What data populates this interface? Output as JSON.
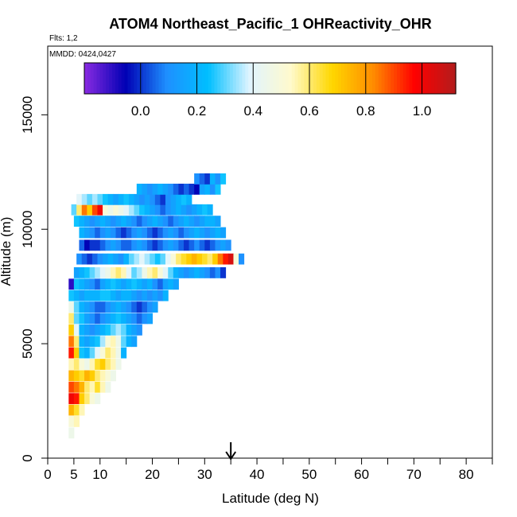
{
  "chart_data": {
    "type": "heatmap",
    "title": "ATOM4 Northeast_Pacific_1 OHReactivity_OHR",
    "flights_note": "Flts: 1,2",
    "date_note": "MMDD: 0424,0427",
    "xlabel": "Latitude (deg N)",
    "ylabel": "Altitude (m)",
    "xlim": [
      0,
      85
    ],
    "ylim": [
      0,
      18000
    ],
    "x_ticks": [
      0,
      5,
      10,
      20,
      30,
      40,
      50,
      60,
      70,
      80
    ],
    "x_minor_ticks": [
      15,
      25,
      35,
      45,
      55,
      65,
      75,
      85
    ],
    "y_ticks": [
      0,
      5000,
      10000,
      15000
    ],
    "colorbar": {
      "range": [
        -0.2,
        1.12
      ],
      "ticks": [
        0.0,
        0.2,
        0.4,
        0.6,
        0.8,
        1.0
      ],
      "tick_labels": [
        "0.0",
        "0.2",
        "0.4",
        "0.6",
        "0.8",
        "1.0"
      ],
      "colors": [
        "#8a2be2",
        "#0000b4",
        "#1e90ff",
        "#00bfff",
        "#e0f4ff",
        "#fffacd",
        "#ffd700",
        "#ff8c00",
        "#ff0000",
        "#b21c1c"
      ]
    },
    "marker_latitude": 35,
    "rows": [
      {
        "alt": 1100,
        "lat_start": 4.0,
        "values": [
          0.45
        ]
      },
      {
        "alt": 1600,
        "lat_start": 4.0,
        "values": [
          0.5,
          0.55
        ]
      },
      {
        "alt": 2100,
        "lat_start": 4.0,
        "values": [
          0.75,
          0.65,
          0.55
        ]
      },
      {
        "alt": 2600,
        "lat_start": 4.0,
        "values": [
          1.0,
          0.95,
          0.7,
          0.6,
          0.5,
          0.45
        ]
      },
      {
        "alt": 3100,
        "lat_start": 4.0,
        "values": [
          0.9,
          0.85,
          0.75,
          0.6,
          0.55,
          0.65,
          0.55,
          0.45
        ]
      },
      {
        "alt": 3600,
        "lat_start": 4.0,
        "values": [
          0.75,
          0.7,
          0.65,
          0.75,
          0.7,
          0.6,
          0.55,
          0.5,
          0.45
        ]
      },
      {
        "alt": 4100,
        "lat_start": 4.0,
        "values": [
          0.55,
          0.6,
          0.5,
          0.45,
          0.55,
          0.65,
          0.7,
          0.6,
          0.55,
          0.45
        ]
      },
      {
        "alt": 4600,
        "lat_start": 4.0,
        "values": [
          0.95,
          0.7,
          0.25,
          0.2,
          0.3,
          0.4,
          0.5,
          0.6,
          0.55,
          0.45,
          0.2
        ]
      },
      {
        "alt": 5100,
        "lat_start": 4.0,
        "values": [
          0.85,
          0.6,
          0.2,
          0.15,
          0.2,
          0.25,
          0.35,
          0.5,
          0.55,
          0.45,
          0.3,
          0.2,
          0.15
        ]
      },
      {
        "alt": 5600,
        "lat_start": 4.0,
        "values": [
          0.7,
          0.4,
          0.2,
          0.15,
          0.1,
          0.15,
          0.2,
          0.25,
          0.3,
          0.35,
          0.3,
          0.2,
          0.15,
          0.1
        ]
      },
      {
        "alt": 6100,
        "lat_start": 4.0,
        "values": [
          0.6,
          0.3,
          0.25,
          0.15,
          0.1,
          0.05,
          0.1,
          0.15,
          0.2,
          0.25,
          0.2,
          0.15,
          0.1,
          0.05,
          0.1,
          0.15
        ]
      },
      {
        "alt": 6600,
        "lat_start": 4.0,
        "values": [
          0.45,
          0.3,
          0.2,
          0.15,
          0.1,
          0.05,
          0.05,
          0.1,
          0.15,
          0.2,
          0.15,
          0.1,
          0.05,
          0.0,
          0.05,
          0.1,
          0.15
        ]
      },
      {
        "alt": 7100,
        "lat_start": 4.0,
        "values": [
          0.25,
          0.2,
          0.15,
          0.2,
          0.2,
          0.2,
          0.25,
          0.25,
          0.2,
          0.15,
          0.2,
          0.2,
          0.15,
          0.1,
          0.15,
          0.1,
          0.15,
          0.1,
          0.2
        ]
      },
      {
        "alt": 7600,
        "lat_start": 4.0,
        "values": [
          -0.1,
          0.25,
          0.2,
          0.15,
          0.1,
          0.05,
          0.15,
          0.2,
          0.25,
          0.2,
          0.15,
          0.2,
          0.25,
          0.2,
          0.15,
          0.2,
          0.1,
          0.05,
          0.15,
          0.2,
          0.15
        ]
      },
      {
        "alt": 8100,
        "lat_start": 5.0,
        "values": [
          0.15,
          0.2,
          0.25,
          0.3,
          0.35,
          0.4,
          0.45,
          0.55,
          0.6,
          0.55,
          0.4,
          0.3,
          0.35,
          0.45,
          0.55,
          0.6,
          0.5,
          0.4,
          0.3,
          0.2,
          0.15,
          0.1,
          0.15,
          0.2,
          0.15,
          0.1,
          0.05,
          0.1,
          0.0
        ]
      },
      {
        "alt": 8700,
        "lat_start": 5.5,
        "values": [
          0.1,
          0.05,
          0.0,
          0.05,
          0.1,
          0.15,
          0.2,
          0.15,
          0.1,
          0.2,
          0.3,
          0.35,
          0.4,
          0.35,
          0.3,
          0.25,
          0.3,
          0.4,
          0.5,
          0.6,
          0.65,
          0.7,
          0.75,
          0.7,
          0.65,
          0.6,
          0.7,
          0.85,
          0.95,
          1.05,
          0.5,
          0.1
        ]
      },
      {
        "alt": 9300,
        "lat_start": 6.0,
        "values": [
          0.05,
          -0.05,
          0.0,
          0.0,
          0.05,
          0.1,
          0.15,
          0.1,
          0.05,
          0.05,
          0.1,
          0.15,
          0.1,
          0.05,
          0.0,
          0.05,
          0.1,
          0.15,
          0.1,
          0.05,
          0.0,
          0.05,
          0.1,
          0.05,
          0.0,
          0.05,
          0.1,
          0.15,
          0.1
        ]
      },
      {
        "alt": 9850,
        "lat_start": 6.0,
        "values": [
          0.2,
          0.15,
          0.1,
          0.05,
          0.1,
          0.15,
          0.1,
          0.05,
          0.0,
          0.05,
          0.1,
          0.15,
          0.1,
          0.05,
          0.0,
          0.05,
          0.1,
          0.15,
          0.1,
          0.05,
          0.1,
          0.15,
          0.2,
          0.15,
          0.1,
          0.15,
          0.2,
          0.15
        ]
      },
      {
        "alt": 10350,
        "lat_start": 5.0,
        "values": [
          0.25,
          0.2,
          0.15,
          0.1,
          0.15,
          0.2,
          0.15,
          0.1,
          0.15,
          0.2,
          0.15,
          0.1,
          0.05,
          0.1,
          0.15,
          0.2,
          0.15,
          0.1,
          0.05,
          0.1,
          0.15,
          0.2,
          0.15,
          0.1,
          0.15,
          0.2,
          0.2,
          0.15
        ]
      },
      {
        "alt": 10850,
        "lat_start": 4.5,
        "values": [
          0.3,
          0.6,
          0.85,
          0.7,
          0.9,
          1.0,
          0.5,
          0.45,
          0.5,
          0.45,
          0.4,
          0.35,
          0.3,
          0.25,
          0.2,
          0.15,
          0.1,
          0.05,
          0.1,
          0.15,
          0.2,
          0.15,
          0.1,
          0.15,
          0.2,
          0.25,
          0.2
        ]
      },
      {
        "alt": 11300,
        "lat_start": 5.5,
        "values": [
          0.4,
          0.35,
          0.3,
          0.35,
          0.3,
          0.25,
          0.2,
          0.15,
          0.2,
          0.25,
          0.2,
          0.15,
          0.1,
          0.15,
          0.1,
          0.05,
          0.0,
          0.1,
          0.15,
          0.2,
          0.25,
          0.2
        ]
      },
      {
        "alt": 11750,
        "lat_start": 17.0,
        "values": [
          0.2,
          0.15,
          0.1,
          0.15,
          0.2,
          0.15,
          0.1,
          0.05,
          0.0,
          0.05,
          0.0,
          -0.05,
          0.15,
          0.2,
          0.1,
          0.25
        ]
      },
      {
        "alt": 12200,
        "lat_start": 28.0,
        "values": [
          0.1,
          0.05,
          0.0,
          0.2,
          0.1,
          0.25
        ]
      }
    ]
  }
}
